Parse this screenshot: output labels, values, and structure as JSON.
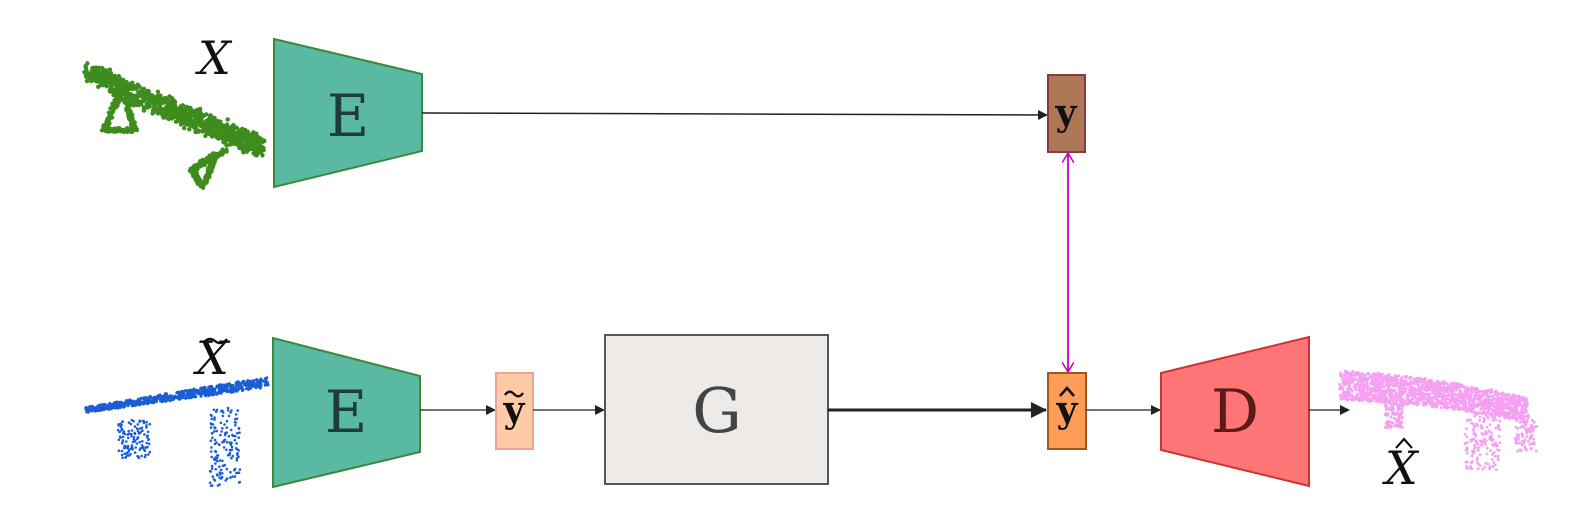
{
  "labels": {
    "input_top": "X",
    "input_bottom": "X",
    "output": "X",
    "encoder_top": "E",
    "encoder_bottom": "E",
    "generator": "G",
    "decoder": "D",
    "latent_y": "y",
    "latent_y_tilde": "y",
    "latent_y_hat": "y"
  },
  "colors": {
    "encoder_fill": "#5ab9a3",
    "encoder_stroke": "#3a8a3a",
    "generator_fill": "#edeae7",
    "generator_stroke": "#555555",
    "decoder_fill": "#ff7575",
    "decoder_stroke": "#cc3333",
    "y_fill": "#ac7757",
    "y_tilde_fill": "#ffcba6",
    "y_hat_fill": "#ff9c57",
    "arrow": "#222222",
    "loss_arrow": "#c800c8",
    "cloud_top": "#3f8c1e",
    "cloud_bottom": "#1a5ed6",
    "cloud_output": "#f5a0f2"
  }
}
